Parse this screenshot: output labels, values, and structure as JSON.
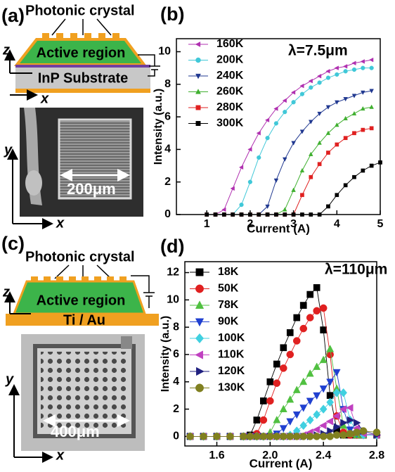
{
  "panels": {
    "a": "(a)",
    "b": "(b)",
    "c": "(c)",
    "d": "(d)"
  },
  "diagram_a": {
    "top_label": "Photonic crystal",
    "active": "Active region",
    "substrate": "InP Substrate",
    "axis_z": "z",
    "axis_x": "x"
  },
  "image_a": {
    "scale": "200μm",
    "axis_y": "y",
    "axis_x": "x"
  },
  "diagram_c": {
    "top_label": "Photonic crystal",
    "active": "Active region",
    "contact": "Ti / Au",
    "axis_z": "z",
    "axis_x": "x"
  },
  "image_c": {
    "scale": "400μm",
    "axis_y": "y",
    "axis_x": "x"
  },
  "chart_data": [
    {
      "type": "line",
      "annotation": "λ=7.5μm",
      "x_label": "Current (A)",
      "y_label": "Intensity (a.u.)",
      "legend": "upper left",
      "x": [
        1.0,
        1.2,
        1.4,
        1.6,
        1.8,
        2.0,
        2.2,
        2.4,
        2.6,
        2.8,
        3.0,
        3.2,
        3.4,
        3.6,
        3.8,
        4.0,
        4.2,
        4.4,
        4.6,
        4.8,
        5.0
      ],
      "series": [
        {
          "name": "160K",
          "color": "#b030b0",
          "marker": "triangle-left",
          "values": [
            0,
            0,
            0.3,
            1.6,
            2.9,
            4.0,
            5.0,
            5.8,
            6.5,
            7.0,
            7.5,
            7.9,
            8.2,
            8.5,
            8.8,
            9.0,
            9.1,
            9.3,
            9.4,
            9.5,
            null
          ]
        },
        {
          "name": "200K",
          "color": "#40c8d8",
          "marker": "circle",
          "values": [
            0,
            0,
            0,
            0,
            0.6,
            2.0,
            3.5,
            4.7,
            5.6,
            6.3,
            6.9,
            7.4,
            7.8,
            8.1,
            8.4,
            8.6,
            8.8,
            8.9,
            9.0,
            9.0,
            null
          ]
        },
        {
          "name": "240K",
          "color": "#203890",
          "marker": "triangle-down",
          "values": [
            0,
            0,
            0,
            0,
            0,
            0,
            0,
            0.5,
            2.1,
            3.4,
            4.4,
            5.1,
            5.7,
            6.2,
            6.6,
            6.9,
            7.1,
            7.3,
            7.5,
            7.6,
            null
          ]
        },
        {
          "name": "260K",
          "color": "#40b030",
          "marker": "triangle-up",
          "values": [
            0,
            0,
            0,
            0,
            0,
            0,
            0,
            0,
            0,
            0.3,
            1.5,
            2.7,
            3.7,
            4.4,
            5.0,
            5.5,
            5.9,
            6.2,
            6.5,
            6.6,
            null
          ]
        },
        {
          "name": "280K",
          "color": "#e02020",
          "marker": "square",
          "values": [
            0,
            0,
            0,
            0,
            0,
            0,
            0,
            0,
            0,
            0,
            0,
            1.2,
            2.3,
            3.1,
            3.8,
            4.3,
            4.7,
            5.0,
            5.2,
            5.3,
            null
          ]
        },
        {
          "name": "300K",
          "color": "#000000",
          "marker": "square",
          "values": [
            0,
            0,
            0,
            0,
            0,
            0,
            0,
            0,
            0,
            0,
            0,
            0,
            0,
            0,
            0.5,
            1.2,
            1.8,
            2.3,
            2.7,
            3.0,
            3.2
          ]
        }
      ],
      "xlim": [
        0.3,
        5.0
      ],
      "ylim": [
        0,
        10.8
      ],
      "xticks": [
        1,
        2,
        3,
        4,
        5
      ],
      "yticks": [
        0,
        2,
        4,
        6,
        8,
        10
      ]
    },
    {
      "type": "line",
      "annotation": "λ=110μm",
      "x_label": "Current (A)",
      "y_label": "Intensity (a.u.)",
      "legend": "upper left",
      "x": [
        1.4,
        1.5,
        1.6,
        1.7,
        1.8,
        1.85,
        1.9,
        1.95,
        2.0,
        2.05,
        2.1,
        2.15,
        2.2,
        2.25,
        2.3,
        2.35,
        2.4,
        2.45,
        2.5,
        2.55,
        2.6,
        2.65,
        2.7,
        2.8
      ],
      "series": [
        {
          "name": "18K",
          "color": "#000000",
          "marker": "square",
          "values": [
            0,
            0,
            0,
            0,
            0,
            0.1,
            1.2,
            2.6,
            4.0,
            5.3,
            6.5,
            7.6,
            8.7,
            9.6,
            10.4,
            10.9,
            7.8,
            3.0,
            0.5,
            0.1,
            0.1,
            0.1,
            0.1,
            0.1
          ]
        },
        {
          "name": "50K",
          "color": "#e02020",
          "marker": "circle",
          "values": [
            0,
            0,
            0,
            0,
            0,
            0,
            0.2,
            1.2,
            2.6,
            3.9,
            5.0,
            6.0,
            7.0,
            7.9,
            8.7,
            9.2,
            9.4,
            6.0,
            1.5,
            0.3,
            0.1,
            0.1,
            0.1,
            0.1
          ]
        },
        {
          "name": "78K",
          "color": "#50c040",
          "marker": "triangle-up",
          "values": [
            0,
            0,
            0,
            0,
            0,
            0,
            0,
            0,
            0.3,
            1.2,
            2.0,
            2.7,
            3.4,
            4.0,
            4.6,
            5.1,
            5.6,
            6.4,
            3.5,
            0.8,
            0.2,
            0.1,
            0.1,
            0.1
          ]
        },
        {
          "name": "90K",
          "color": "#2040d0",
          "marker": "triangle-down",
          "values": [
            0,
            0,
            0,
            0,
            0,
            0,
            0,
            0,
            0,
            0.2,
            0.6,
            1.1,
            1.6,
            2.1,
            2.6,
            3.0,
            3.5,
            4.0,
            4.7,
            2.0,
            0.5,
            0.2,
            0.1,
            0.1
          ]
        },
        {
          "name": "100K",
          "color": "#40d0e0",
          "marker": "diamond",
          "values": [
            0,
            0,
            0,
            0,
            0,
            0,
            0,
            0,
            0,
            0,
            0,
            0.1,
            0.4,
            0.8,
            1.2,
            1.6,
            2.0,
            2.5,
            3.2,
            3.2,
            1.2,
            0.3,
            0.1,
            0.1
          ]
        },
        {
          "name": "110K",
          "color": "#c040c0",
          "marker": "triangle-left",
          "values": [
            0,
            0,
            0,
            0,
            0,
            0,
            0,
            0,
            0,
            0,
            0,
            0,
            0,
            0.1,
            0.3,
            0.5,
            0.8,
            1.1,
            1.5,
            2.0,
            2.1,
            0.6,
            0.2,
            0.1
          ]
        },
        {
          "name": "120K",
          "color": "#202080",
          "marker": "triangle-right",
          "values": [
            0,
            0,
            0,
            0,
            0,
            0,
            0,
            0,
            0,
            0,
            0,
            0,
            0,
            0,
            0,
            0.1,
            0.2,
            0.4,
            0.7,
            1.0,
            1.2,
            1.0,
            0.4,
            0.1
          ]
        },
        {
          "name": "130K",
          "color": "#808020",
          "marker": "circle",
          "values": [
            0,
            0,
            0,
            0,
            0,
            0,
            0,
            0,
            0,
            0,
            0,
            0,
            0,
            0,
            0,
            0,
            0,
            0,
            0.1,
            0.1,
            0.2,
            0.3,
            0.4,
            0.3
          ]
        }
      ],
      "xlim": [
        1.36,
        2.8
      ],
      "ylim": [
        -0.7,
        12.8
      ],
      "xticks": [
        1.6,
        {
          "value": 2,
          "label": "2.0"
        },
        2.4,
        2.8
      ],
      "yticks": [
        0,
        2,
        4,
        6,
        8,
        10,
        12
      ]
    }
  ]
}
